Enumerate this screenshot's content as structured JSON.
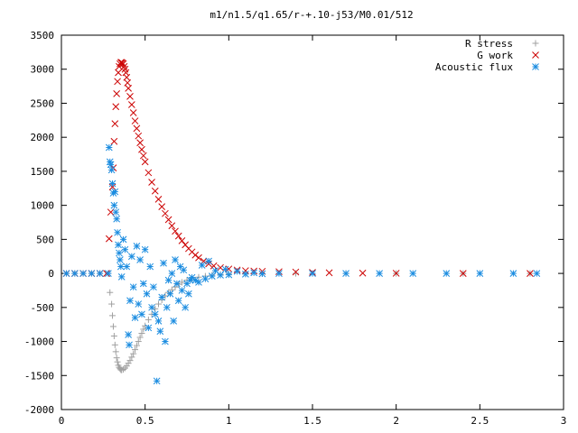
{
  "chart_data": {
    "type": "scatter",
    "title": "m1/n1.5/q1.65/r-+.10-j53/M0.01/512",
    "xlabel": "",
    "ylabel": "",
    "xlim": [
      0,
      3
    ],
    "ylim": [
      -2000,
      3500
    ],
    "xticks": [
      0,
      0.5,
      1,
      1.5,
      2,
      2.5,
      3
    ],
    "xtick_labels": [
      "0",
      "0.5",
      "1",
      "1.5",
      "2",
      "2.5",
      "3"
    ],
    "yticks": [
      -2000,
      -1500,
      -1000,
      -500,
      0,
      500,
      1000,
      1500,
      2000,
      2500,
      3000,
      3500
    ],
    "ytick_labels": [
      "-2000",
      "-1500",
      "-1000",
      "-500",
      "0",
      "500",
      "1000",
      "1500",
      "2000",
      "2500",
      "3000",
      "3500"
    ],
    "grid": false,
    "legend_position": "top-right",
    "series": [
      {
        "name": "R stress",
        "marker": "plus",
        "color": "#a0a0a0",
        "points": [
          [
            0.03,
            0
          ],
          [
            0.08,
            0
          ],
          [
            0.13,
            0
          ],
          [
            0.18,
            0
          ],
          [
            0.23,
            0
          ],
          [
            0.28,
            0
          ],
          [
            0.29,
            -280
          ],
          [
            0.3,
            -450
          ],
          [
            0.305,
            -620
          ],
          [
            0.31,
            -780
          ],
          [
            0.315,
            -920
          ],
          [
            0.32,
            -1050
          ],
          [
            0.325,
            -1150
          ],
          [
            0.33,
            -1240
          ],
          [
            0.335,
            -1300
          ],
          [
            0.34,
            -1350
          ],
          [
            0.345,
            -1380
          ],
          [
            0.35,
            -1400
          ],
          [
            0.355,
            -1415
          ],
          [
            0.36,
            -1420
          ],
          [
            0.37,
            -1410
          ],
          [
            0.38,
            -1390
          ],
          [
            0.39,
            -1360
          ],
          [
            0.4,
            -1320
          ],
          [
            0.41,
            -1280
          ],
          [
            0.42,
            -1230
          ],
          [
            0.43,
            -1180
          ],
          [
            0.44,
            -1120
          ],
          [
            0.45,
            -1060
          ],
          [
            0.46,
            -1000
          ],
          [
            0.47,
            -940
          ],
          [
            0.48,
            -880
          ],
          [
            0.49,
            -820
          ],
          [
            0.5,
            -770
          ],
          [
            0.52,
            -680
          ],
          [
            0.54,
            -600
          ],
          [
            0.56,
            -520
          ],
          [
            0.58,
            -450
          ],
          [
            0.6,
            -390
          ],
          [
            0.62,
            -330
          ],
          [
            0.64,
            -280
          ],
          [
            0.66,
            -240
          ],
          [
            0.68,
            -200
          ],
          [
            0.7,
            -160
          ],
          [
            0.72,
            -130
          ],
          [
            0.75,
            -100
          ],
          [
            0.78,
            -75
          ],
          [
            0.82,
            -55
          ],
          [
            0.86,
            -40
          ],
          [
            0.9,
            -25
          ],
          [
            0.95,
            -15
          ],
          [
            1.0,
            -8
          ],
          [
            1.1,
            -4
          ],
          [
            1.2,
            -2
          ],
          [
            1.4,
            0
          ],
          [
            1.7,
            0
          ],
          [
            2.0,
            0
          ],
          [
            2.4,
            0
          ],
          [
            2.8,
            0
          ]
        ]
      },
      {
        "name": "G work",
        "marker": "cross",
        "color": "#cc0000",
        "points": [
          [
            0.03,
            0
          ],
          [
            0.08,
            0
          ],
          [
            0.13,
            0
          ],
          [
            0.18,
            0
          ],
          [
            0.23,
            0
          ],
          [
            0.27,
            0
          ],
          [
            0.285,
            510
          ],
          [
            0.295,
            900
          ],
          [
            0.305,
            1270
          ],
          [
            0.31,
            1550
          ],
          [
            0.315,
            1940
          ],
          [
            0.32,
            2200
          ],
          [
            0.325,
            2450
          ],
          [
            0.33,
            2640
          ],
          [
            0.335,
            2820
          ],
          [
            0.34,
            2950
          ],
          [
            0.345,
            3040
          ],
          [
            0.35,
            3080
          ],
          [
            0.355,
            3100
          ],
          [
            0.36,
            3100
          ],
          [
            0.365,
            3090
          ],
          [
            0.37,
            3080
          ],
          [
            0.375,
            3040
          ],
          [
            0.38,
            3000
          ],
          [
            0.385,
            2950
          ],
          [
            0.39,
            2880
          ],
          [
            0.395,
            2800
          ],
          [
            0.4,
            2720
          ],
          [
            0.41,
            2600
          ],
          [
            0.42,
            2480
          ],
          [
            0.43,
            2360
          ],
          [
            0.44,
            2240
          ],
          [
            0.45,
            2130
          ],
          [
            0.46,
            2020
          ],
          [
            0.47,
            1920
          ],
          [
            0.48,
            1820
          ],
          [
            0.49,
            1730
          ],
          [
            0.5,
            1640
          ],
          [
            0.52,
            1480
          ],
          [
            0.54,
            1340
          ],
          [
            0.56,
            1210
          ],
          [
            0.58,
            1090
          ],
          [
            0.6,
            980
          ],
          [
            0.62,
            880
          ],
          [
            0.64,
            790
          ],
          [
            0.66,
            700
          ],
          [
            0.68,
            620
          ],
          [
            0.7,
            550
          ],
          [
            0.72,
            480
          ],
          [
            0.74,
            420
          ],
          [
            0.76,
            365
          ],
          [
            0.78,
            315
          ],
          [
            0.8,
            270
          ],
          [
            0.82,
            230
          ],
          [
            0.85,
            180
          ],
          [
            0.88,
            140
          ],
          [
            0.91,
            110
          ],
          [
            0.95,
            85
          ],
          [
            1.0,
            65
          ],
          [
            1.05,
            50
          ],
          [
            1.1,
            40
          ],
          [
            1.15,
            35
          ],
          [
            1.2,
            30
          ],
          [
            1.3,
            25
          ],
          [
            1.4,
            20
          ],
          [
            1.5,
            15
          ],
          [
            1.6,
            10
          ],
          [
            1.8,
            5
          ],
          [
            2.0,
            2
          ],
          [
            2.4,
            0
          ],
          [
            2.8,
            0
          ]
        ]
      },
      {
        "name": "Acoustic flux",
        "marker": "star",
        "color": "#1a8ce0",
        "points": [
          [
            0.03,
            0
          ],
          [
            0.08,
            0
          ],
          [
            0.13,
            0
          ],
          [
            0.18,
            0
          ],
          [
            0.23,
            0
          ],
          [
            0.28,
            0
          ],
          [
            0.285,
            1850
          ],
          [
            0.29,
            1640
          ],
          [
            0.295,
            1600
          ],
          [
            0.3,
            1520
          ],
          [
            0.305,
            1320
          ],
          [
            0.31,
            1180
          ],
          [
            0.315,
            1000
          ],
          [
            0.32,
            1200
          ],
          [
            0.325,
            900
          ],
          [
            0.33,
            800
          ],
          [
            0.335,
            600
          ],
          [
            0.34,
            420
          ],
          [
            0.345,
            300
          ],
          [
            0.35,
            200
          ],
          [
            0.355,
            100
          ],
          [
            0.36,
            -50
          ],
          [
            0.37,
            500
          ],
          [
            0.38,
            350
          ],
          [
            0.39,
            100
          ],
          [
            0.4,
            -900
          ],
          [
            0.405,
            -1050
          ],
          [
            0.41,
            -400
          ],
          [
            0.42,
            250
          ],
          [
            0.43,
            -200
          ],
          [
            0.44,
            -650
          ],
          [
            0.45,
            400
          ],
          [
            0.46,
            -450
          ],
          [
            0.47,
            200
          ],
          [
            0.48,
            -600
          ],
          [
            0.49,
            -150
          ],
          [
            0.5,
            350
          ],
          [
            0.51,
            -300
          ],
          [
            0.52,
            -800
          ],
          [
            0.53,
            100
          ],
          [
            0.54,
            -500
          ],
          [
            0.55,
            -200
          ],
          [
            0.56,
            -600
          ],
          [
            0.57,
            -1580
          ],
          [
            0.58,
            -700
          ],
          [
            0.59,
            -850
          ],
          [
            0.6,
            -350
          ],
          [
            0.61,
            150
          ],
          [
            0.62,
            -1000
          ],
          [
            0.63,
            -500
          ],
          [
            0.64,
            -100
          ],
          [
            0.65,
            -300
          ],
          [
            0.66,
            0
          ],
          [
            0.67,
            -700
          ],
          [
            0.68,
            200
          ],
          [
            0.69,
            -150
          ],
          [
            0.7,
            -400
          ],
          [
            0.71,
            100
          ],
          [
            0.72,
            -250
          ],
          [
            0.73,
            50
          ],
          [
            0.74,
            -500
          ],
          [
            0.75,
            -150
          ],
          [
            0.76,
            -300
          ],
          [
            0.77,
            -100
          ],
          [
            0.78,
            -60
          ],
          [
            0.8,
            -100
          ],
          [
            0.82,
            -130
          ],
          [
            0.84,
            120
          ],
          [
            0.86,
            -80
          ],
          [
            0.88,
            180
          ],
          [
            0.9,
            -40
          ],
          [
            0.92,
            40
          ],
          [
            0.95,
            -25
          ],
          [
            0.98,
            60
          ],
          [
            1.0,
            -20
          ],
          [
            1.05,
            30
          ],
          [
            1.1,
            -10
          ],
          [
            1.15,
            10
          ],
          [
            1.2,
            -5
          ],
          [
            1.3,
            0
          ],
          [
            1.5,
            0
          ],
          [
            1.7,
            0
          ],
          [
            1.9,
            0
          ],
          [
            2.1,
            0
          ],
          [
            2.3,
            0
          ],
          [
            2.5,
            0
          ],
          [
            2.7,
            0
          ],
          [
            2.84,
            0
          ]
        ]
      }
    ]
  }
}
